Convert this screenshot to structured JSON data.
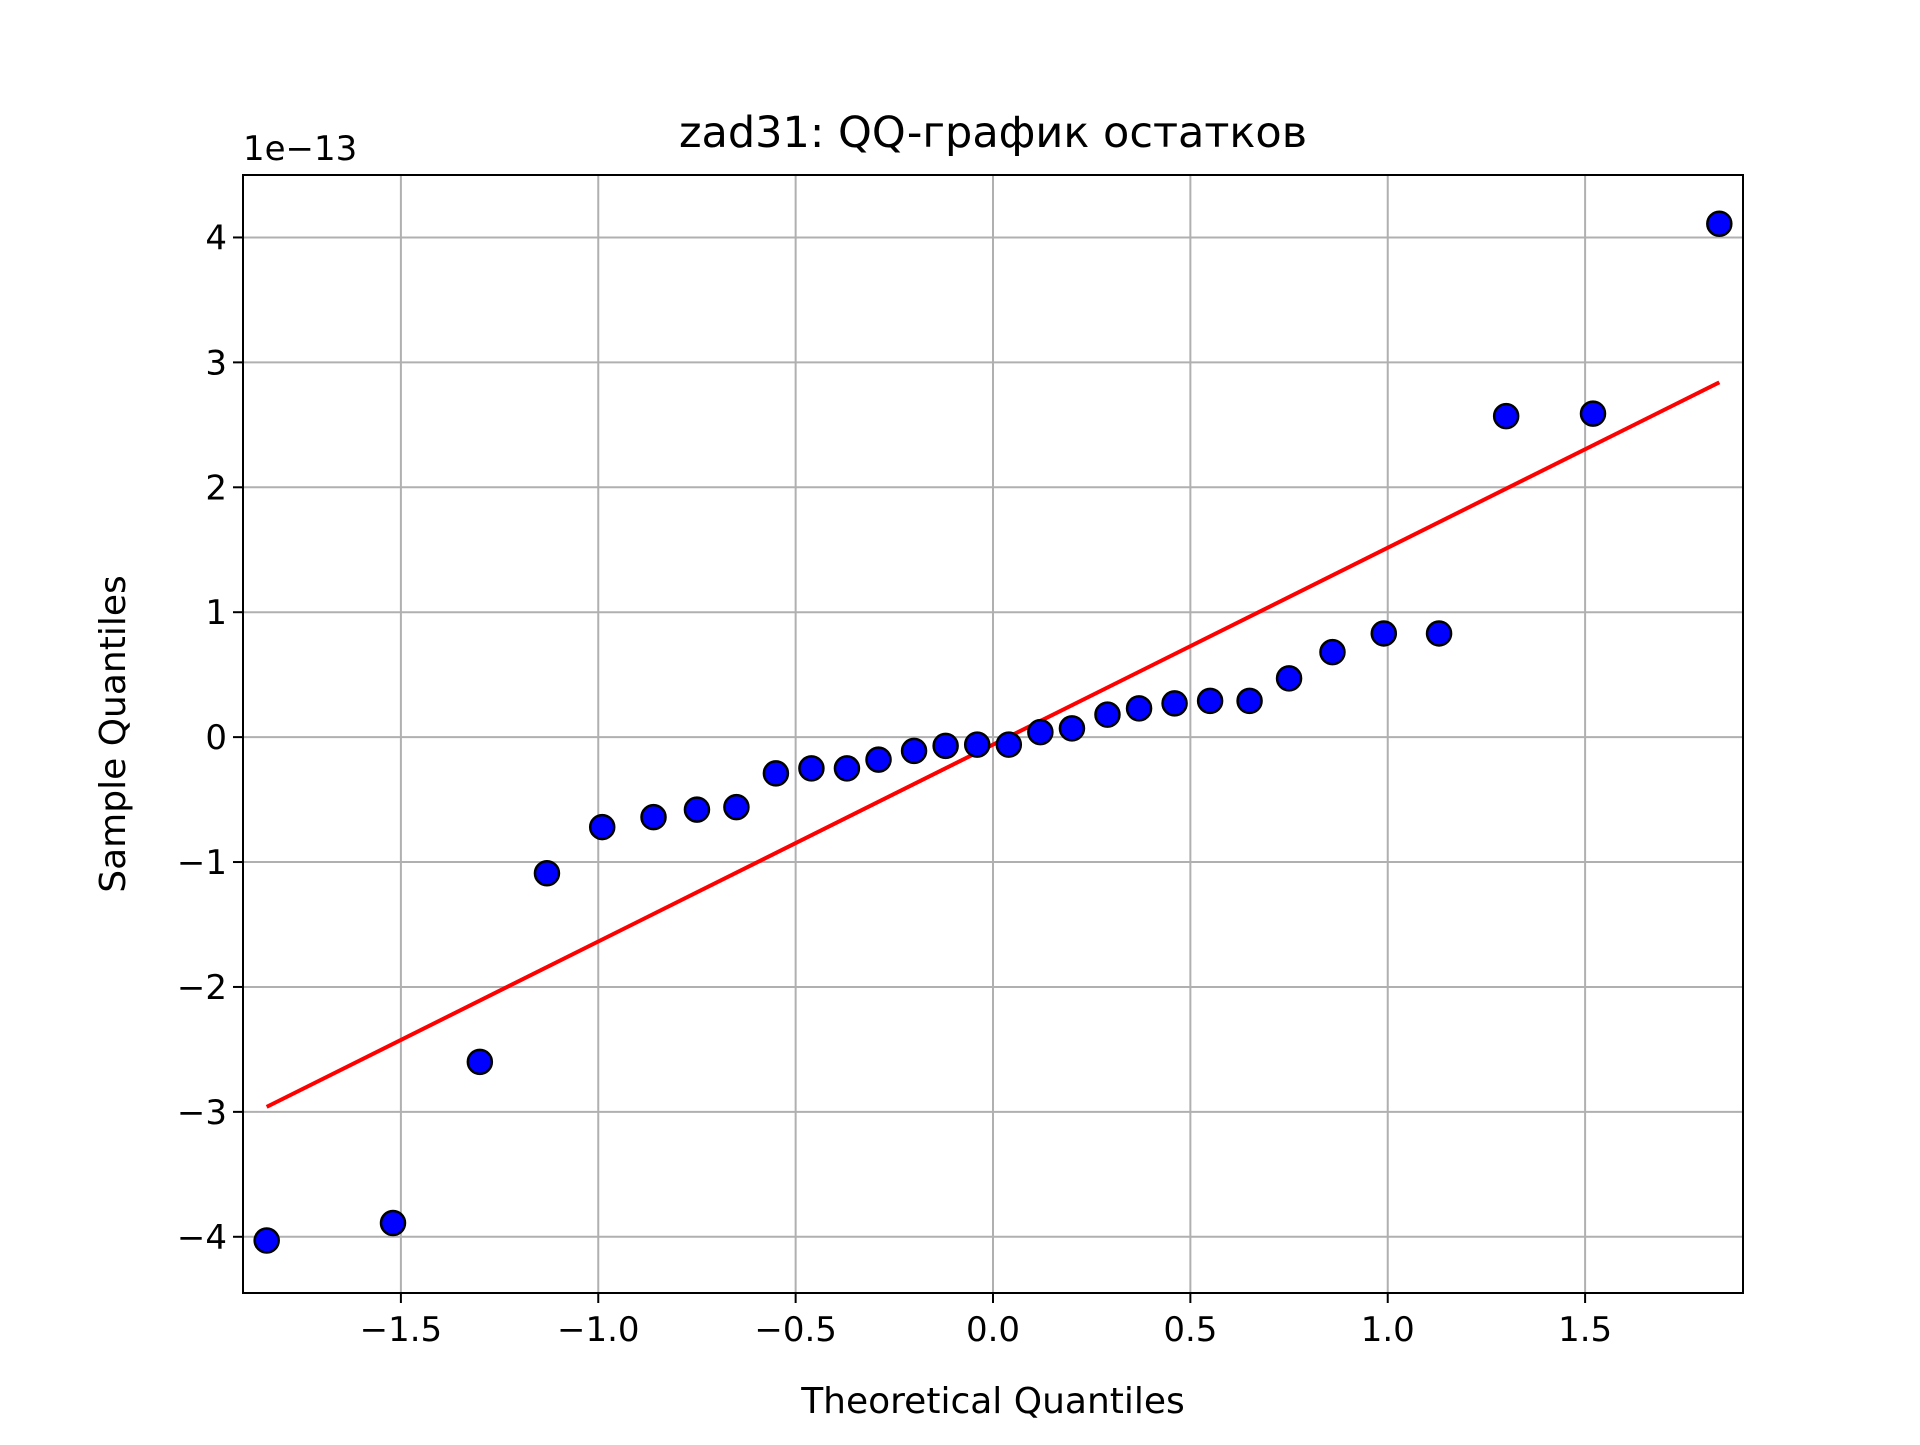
{
  "chart_data": {
    "type": "scatter",
    "title": "zad31: QQ-график остатков",
    "xlabel": "Theoretical Quantiles",
    "ylabel": "Sample Quantiles",
    "y_offset_label": "1e−13",
    "xlim": [
      -1.9,
      1.9
    ],
    "ylim": [
      -4.45,
      4.5
    ],
    "x_ticks": [
      -1.5,
      -1.0,
      -0.5,
      0.0,
      0.5,
      1.0,
      1.5
    ],
    "x_tick_labels": [
      "−1.5",
      "−1.0",
      "−0.5",
      "0.0",
      "0.5",
      "1.0",
      "1.5"
    ],
    "y_ticks": [
      -4,
      -3,
      -2,
      -1,
      0,
      1,
      2,
      3,
      4
    ],
    "y_tick_labels": [
      "−4",
      "−3",
      "−2",
      "−1",
      "0",
      "1",
      "2",
      "3",
      "4"
    ],
    "grid": true,
    "marker_color": "#0000ff",
    "marker_edge_color": "#000000",
    "line_color": "#ff0000",
    "x": [
      -1.84,
      -1.52,
      -1.3,
      -1.13,
      -0.99,
      -0.86,
      -0.75,
      -0.65,
      -0.55,
      -0.46,
      -0.37,
      -0.29,
      -0.2,
      -0.12,
      -0.04,
      0.04,
      0.12,
      0.2,
      0.29,
      0.37,
      0.46,
      0.55,
      0.65,
      0.75,
      0.86,
      0.99,
      1.13,
      1.3,
      1.52,
      1.84
    ],
    "y": [
      -4.03,
      -3.89,
      -2.6,
      -1.09,
      -0.72,
      -0.64,
      -0.58,
      -0.56,
      -0.29,
      -0.25,
      -0.25,
      -0.18,
      -0.11,
      -0.07,
      -0.06,
      -0.06,
      0.04,
      0.07,
      0.18,
      0.23,
      0.27,
      0.29,
      0.29,
      0.47,
      0.68,
      0.83,
      0.83,
      2.57,
      2.59,
      4.11
    ],
    "reference_line": {
      "x": [
        -1.84,
        1.84
      ],
      "y": [
        -2.96,
        2.84
      ]
    }
  }
}
